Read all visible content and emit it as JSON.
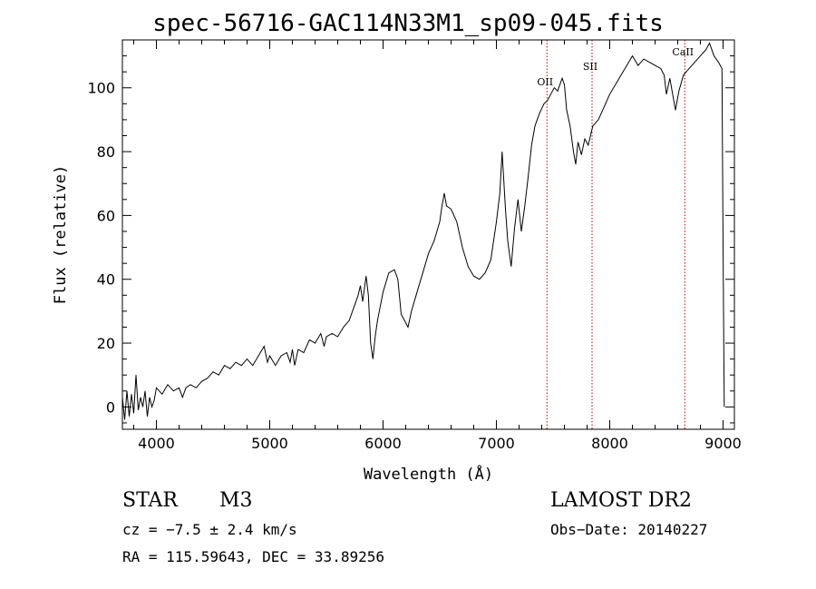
{
  "title": "spec-56716-GAC114N33M1_sp09-045.fits",
  "info": {
    "obj_class": "STAR",
    "obj_subclass": "M3",
    "survey": "LAMOST DR2",
    "cz_line": "cz = −7.5 ± 2.4 km/s",
    "obsdate_line": "Obs−Date: 20140227",
    "radec_line": "RA = 115.59643, DEC =  33.89256"
  },
  "chart_data": {
    "type": "line",
    "title": "spec-56716-GAC114N33M1_sp09-045.fits",
    "xlabel": "Wavelength (Å)",
    "ylabel": "Flux (relative)",
    "xlim": [
      3700,
      9100
    ],
    "ylim": [
      -7,
      115
    ],
    "xticks": [
      4000,
      5000,
      6000,
      7000,
      8000,
      9000
    ],
    "yticks": [
      0,
      20,
      40,
      60,
      80,
      100
    ],
    "grid": false,
    "line_color": "#000000",
    "marker_color": "#c00000",
    "lines": [
      {
        "label": "OII",
        "x": 7446
      },
      {
        "label": "SII",
        "x": 7844
      },
      {
        "label": "CaII",
        "x": 8662
      }
    ],
    "series": [
      {
        "values": [
          [
            3700,
            3
          ],
          [
            3720,
            -4
          ],
          [
            3740,
            5
          ],
          [
            3760,
            -3
          ],
          [
            3780,
            4
          ],
          [
            3800,
            -2
          ],
          [
            3820,
            10
          ],
          [
            3840,
            -1
          ],
          [
            3860,
            3
          ],
          [
            3880,
            0
          ],
          [
            3900,
            5
          ],
          [
            3920,
            -3
          ],
          [
            3940,
            3
          ],
          [
            3960,
            0
          ],
          [
            3980,
            2
          ],
          [
            4000,
            6
          ],
          [
            4050,
            4
          ],
          [
            4100,
            7
          ],
          [
            4150,
            5
          ],
          [
            4200,
            6
          ],
          [
            4230,
            3
          ],
          [
            4260,
            6
          ],
          [
            4300,
            7
          ],
          [
            4350,
            6
          ],
          [
            4400,
            8
          ],
          [
            4450,
            9
          ],
          [
            4500,
            11
          ],
          [
            4550,
            10
          ],
          [
            4600,
            13
          ],
          [
            4650,
            12
          ],
          [
            4700,
            14
          ],
          [
            4750,
            13
          ],
          [
            4800,
            15
          ],
          [
            4850,
            13
          ],
          [
            4900,
            16
          ],
          [
            4950,
            19
          ],
          [
            4980,
            14
          ],
          [
            5000,
            16
          ],
          [
            5050,
            13
          ],
          [
            5100,
            16
          ],
          [
            5150,
            17
          ],
          [
            5180,
            14
          ],
          [
            5200,
            18
          ],
          [
            5220,
            13
          ],
          [
            5250,
            18
          ],
          [
            5300,
            17
          ],
          [
            5350,
            21
          ],
          [
            5400,
            20
          ],
          [
            5450,
            23
          ],
          [
            5480,
            19
          ],
          [
            5500,
            22
          ],
          [
            5550,
            23
          ],
          [
            5600,
            22
          ],
          [
            5650,
            25
          ],
          [
            5700,
            27
          ],
          [
            5750,
            32
          ],
          [
            5780,
            35
          ],
          [
            5800,
            38
          ],
          [
            5820,
            33
          ],
          [
            5850,
            41
          ],
          [
            5870,
            35
          ],
          [
            5890,
            20
          ],
          [
            5910,
            15
          ],
          [
            5930,
            22
          ],
          [
            5950,
            27
          ],
          [
            6000,
            36
          ],
          [
            6050,
            42
          ],
          [
            6100,
            43
          ],
          [
            6130,
            40
          ],
          [
            6160,
            29
          ],
          [
            6190,
            27
          ],
          [
            6220,
            25
          ],
          [
            6250,
            30
          ],
          [
            6300,
            36
          ],
          [
            6350,
            42
          ],
          [
            6400,
            48
          ],
          [
            6450,
            52
          ],
          [
            6500,
            58
          ],
          [
            6520,
            63
          ],
          [
            6540,
            67
          ],
          [
            6560,
            63
          ],
          [
            6600,
            62
          ],
          [
            6650,
            58
          ],
          [
            6700,
            50
          ],
          [
            6750,
            44
          ],
          [
            6800,
            41
          ],
          [
            6850,
            40
          ],
          [
            6900,
            42
          ],
          [
            6950,
            46
          ],
          [
            7000,
            58
          ],
          [
            7030,
            67
          ],
          [
            7050,
            80
          ],
          [
            7080,
            62
          ],
          [
            7100,
            52
          ],
          [
            7130,
            44
          ],
          [
            7160,
            56
          ],
          [
            7190,
            65
          ],
          [
            7220,
            55
          ],
          [
            7250,
            63
          ],
          [
            7280,
            72
          ],
          [
            7310,
            82
          ],
          [
            7340,
            88
          ],
          [
            7380,
            92
          ],
          [
            7420,
            95
          ],
          [
            7450,
            96
          ],
          [
            7480,
            98
          ],
          [
            7510,
            100
          ],
          [
            7540,
            99
          ],
          [
            7580,
            103
          ],
          [
            7600,
            101
          ],
          [
            7620,
            93
          ],
          [
            7650,
            88
          ],
          [
            7680,
            80
          ],
          [
            7700,
            76
          ],
          [
            7720,
            83
          ],
          [
            7750,
            79
          ],
          [
            7780,
            84
          ],
          [
            7810,
            82
          ],
          [
            7850,
            88
          ],
          [
            7900,
            90
          ],
          [
            7950,
            94
          ],
          [
            8000,
            98
          ],
          [
            8050,
            101
          ],
          [
            8100,
            104
          ],
          [
            8150,
            107
          ],
          [
            8200,
            110
          ],
          [
            8250,
            107
          ],
          [
            8300,
            109
          ],
          [
            8350,
            108
          ],
          [
            8400,
            107
          ],
          [
            8450,
            106
          ],
          [
            8480,
            104
          ],
          [
            8500,
            98
          ],
          [
            8530,
            103
          ],
          [
            8560,
            97
          ],
          [
            8580,
            93
          ],
          [
            8610,
            99
          ],
          [
            8650,
            104
          ],
          [
            8700,
            106
          ],
          [
            8750,
            108
          ],
          [
            8800,
            110
          ],
          [
            8850,
            112
          ],
          [
            8880,
            114
          ],
          [
            8920,
            110
          ],
          [
            8960,
            108
          ],
          [
            8990,
            106
          ],
          [
            9000,
            50
          ],
          [
            9010,
            0
          ]
        ]
      }
    ]
  }
}
